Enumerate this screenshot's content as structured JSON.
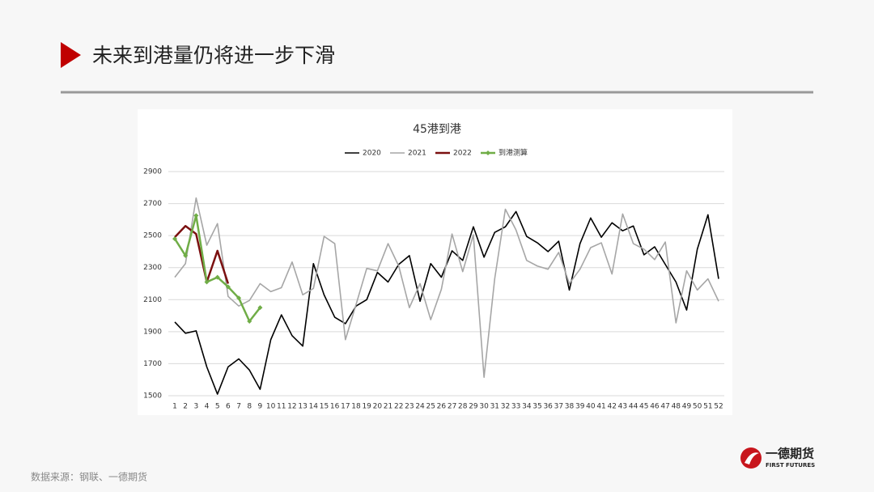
{
  "slide_title": "未来到港量仍将进一步下滑",
  "source": "数据来源：钢联、一德期货",
  "logo": {
    "name": "一德期货",
    "english": "FIRST FUTURES"
  },
  "chart_data": {
    "type": "line",
    "title": "45港到港",
    "categories": [
      "1",
      "2",
      "3",
      "4",
      "5",
      "6",
      "7",
      "8",
      "9",
      "10",
      "11",
      "12",
      "13",
      "14",
      "15",
      "16",
      "17",
      "18",
      "19",
      "20",
      "21",
      "22",
      "23",
      "24",
      "25",
      "26",
      "27",
      "28",
      "29",
      "30",
      "31",
      "32",
      "33",
      "34",
      "35",
      "36",
      "37",
      "38",
      "39",
      "40",
      "41",
      "42",
      "43",
      "44",
      "45",
      "46",
      "47",
      "48",
      "49",
      "50",
      "51",
      "52"
    ],
    "series": [
      {
        "name": "2020",
        "color": "#000000",
        "values": [
          1960,
          1890,
          1905,
          1680,
          1510,
          1680,
          1730,
          1660,
          1540,
          1850,
          2005,
          1875,
          1810,
          2325,
          2130,
          1990,
          1950,
          2060,
          2100,
          2270,
          2210,
          2320,
          2375,
          2090,
          2325,
          2240,
          2405,
          2345,
          2555,
          2365,
          2520,
          2555,
          2650,
          2495,
          2455,
          2400,
          2465,
          2160,
          2450,
          2610,
          2490,
          2580,
          2530,
          2560,
          2380,
          2430,
          2320,
          2210,
          2035,
          2415,
          2630,
          2230
        ]
      },
      {
        "name": "2021",
        "color": "#a6a6a6",
        "values": [
          2240,
          2325,
          2735,
          2440,
          2575,
          2120,
          2060,
          2095,
          2200,
          2150,
          2175,
          2335,
          2130,
          2170,
          2495,
          2450,
          1850,
          2070,
          2295,
          2280,
          2450,
          2310,
          2050,
          2200,
          1975,
          2165,
          2510,
          2275,
          2505,
          1615,
          2230,
          2665,
          2535,
          2345,
          2310,
          2290,
          2395,
          2200,
          2290,
          2425,
          2455,
          2260,
          2635,
          2450,
          2415,
          2350,
          2460,
          1955,
          2280,
          2160,
          2230,
          2090
        ]
      },
      {
        "name": "2022",
        "color": "#7b1010",
        "values": [
          2490,
          2560,
          2510,
          2210,
          2405,
          2200,
          null,
          null,
          null,
          null,
          null,
          null,
          null,
          null,
          null,
          null,
          null,
          null,
          null,
          null,
          null,
          null,
          null,
          null,
          null,
          null,
          null,
          null,
          null,
          null,
          null,
          null,
          null,
          null,
          null,
          null,
          null,
          null,
          null,
          null,
          null,
          null,
          null,
          null,
          null,
          null,
          null,
          null,
          null,
          null,
          null,
          null
        ]
      },
      {
        "name": "到港测算",
        "color": "#70ad47",
        "marker": "diamond",
        "values": [
          2480,
          2375,
          2625,
          2210,
          2240,
          2180,
          2110,
          1965,
          2050,
          null,
          null,
          null,
          null,
          null,
          null,
          null,
          null,
          null,
          null,
          null,
          null,
          null,
          null,
          null,
          null,
          null,
          null,
          null,
          null,
          null,
          null,
          null,
          null,
          null,
          null,
          null,
          null,
          null,
          null,
          null,
          null,
          null,
          null,
          null,
          null,
          null,
          null,
          null,
          null,
          null,
          null,
          null
        ]
      }
    ],
    "ylim": [
      1500,
      2900
    ],
    "yticks": [
      1500,
      1700,
      1900,
      2100,
      2300,
      2500,
      2700,
      2900
    ],
    "grid": true,
    "legend": "top"
  }
}
